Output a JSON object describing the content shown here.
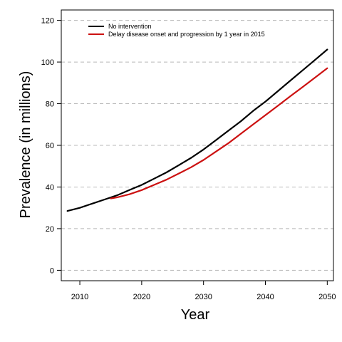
{
  "chart_data": {
    "type": "line",
    "title": "",
    "xlabel": "Year",
    "ylabel": "Prevalence (in millions)",
    "xlim": [
      2007,
      2051
    ],
    "ylim": [
      -5,
      125
    ],
    "xticks": [
      2010,
      2020,
      2030,
      2040,
      2050
    ],
    "yticks": [
      0,
      20,
      40,
      60,
      80,
      100,
      120
    ],
    "grid": "horizontal dashed",
    "legend_position": "top-left",
    "series": [
      {
        "name": "No intervention",
        "color": "#000000",
        "x": [
          2008,
          2010,
          2012,
          2014,
          2016,
          2018,
          2020,
          2022,
          2024,
          2026,
          2028,
          2030,
          2032,
          2034,
          2036,
          2038,
          2040,
          2042,
          2044,
          2046,
          2048,
          2050
        ],
        "values": [
          28.5,
          30,
          32,
          34,
          36,
          38.5,
          41,
          44,
          47,
          50.5,
          54,
          58,
          62.5,
          67,
          71.5,
          76.5,
          81,
          86,
          91,
          96,
          101,
          106
        ]
      },
      {
        "name": "Delay disease onset and progression by 1 year in 2015",
        "color": "#cc1111",
        "x": [
          2015,
          2016,
          2018,
          2020,
          2022,
          2024,
          2026,
          2028,
          2030,
          2032,
          2034,
          2036,
          2038,
          2040,
          2042,
          2044,
          2046,
          2048,
          2050
        ],
        "values": [
          34.5,
          35,
          36.5,
          38.5,
          41,
          43.5,
          46.5,
          49.5,
          53,
          57,
          61,
          65.5,
          70,
          74.5,
          79,
          83.5,
          88,
          92.5,
          97
        ]
      }
    ]
  }
}
